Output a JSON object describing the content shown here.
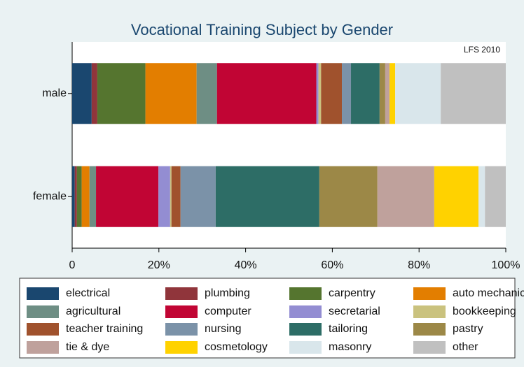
{
  "chart_data": {
    "type": "stacked_barh",
    "title": "Vocational Training Subject by Gender",
    "annotation": "LFS 2010",
    "categories": [
      "male",
      "female"
    ],
    "series": [
      {
        "name": "electrical",
        "color": "#1a476f",
        "values": [
          4.5,
          0.6
        ]
      },
      {
        "name": "plumbing",
        "color": "#90353b",
        "values": [
          1.3,
          0.5
        ]
      },
      {
        "name": "carpentry",
        "color": "#55752f",
        "values": [
          11.1,
          1.1
        ]
      },
      {
        "name": "auto mechanic",
        "color": "#e37e00",
        "values": [
          11.8,
          1.8
        ]
      },
      {
        "name": "agricultural",
        "color": "#6e8e84",
        "values": [
          4.7,
          1.5
        ]
      },
      {
        "name": "computer",
        "color": "#c10534",
        "values": [
          22.9,
          14.4
        ]
      },
      {
        "name": "secretarial",
        "color": "#938dd2",
        "values": [
          0.5,
          2.7
        ]
      },
      {
        "name": "bookkeeping",
        "color": "#cac27e",
        "values": [
          0.6,
          0.3
        ]
      },
      {
        "name": "teacher training",
        "color": "#a0522d",
        "values": [
          4.8,
          2.1
        ]
      },
      {
        "name": "nursing",
        "color": "#7b92a8",
        "values": [
          2.1,
          8.1
        ]
      },
      {
        "name": "tailoring",
        "color": "#2d6d66",
        "values": [
          6.6,
          23.9
        ]
      },
      {
        "name": "pastry",
        "color": "#9c8847",
        "values": [
          1.3,
          13.4
        ]
      },
      {
        "name": "tie & dye",
        "color": "#bfa19c",
        "values": [
          1.0,
          13.1
        ]
      },
      {
        "name": "cosmetology",
        "color": "#ffd200",
        "values": [
          1.3,
          10.2
        ]
      },
      {
        "name": "masonry",
        "color": "#d9e6eb",
        "values": [
          10.5,
          1.5
        ]
      },
      {
        "name": "other",
        "color": "#c0c0c0",
        "values": [
          15.0,
          4.8
        ]
      }
    ],
    "xlim": [
      0,
      100
    ],
    "xticks": [
      0,
      {
        "value": 20,
        "label": "20%"
      },
      {
        "value": 40,
        "label": "40%"
      },
      {
        "value": 60,
        "label": "60%"
      },
      {
        "value": 80,
        "label": "80%"
      },
      {
        "value": 100,
        "label": "100%"
      }
    ],
    "grid": false,
    "legend": "bottom"
  }
}
